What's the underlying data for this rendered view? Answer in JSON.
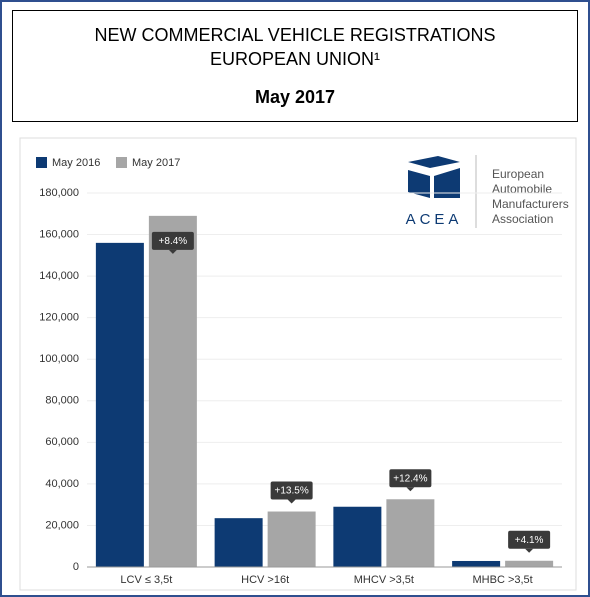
{
  "chart_data": {
    "type": "bar",
    "title": [
      "NEW COMMERCIAL VEHICLE REGISTRATIONS",
      "EUROPEAN UNION¹"
    ],
    "subtitle": "May 2017",
    "logo": {
      "abbr": "ACEA",
      "lines": [
        "European",
        "Automobile",
        "Manufacturers",
        "Association"
      ]
    },
    "categories": [
      "LCV ≤ 3,5t",
      "HCV >16t",
      "MHCV >3,5t",
      "MHBC >3,5t"
    ],
    "series": [
      {
        "name": "May 2016",
        "color": "#0d3a73",
        "values": [
          156000,
          23500,
          29000,
          2900
        ]
      },
      {
        "name": "May 2017",
        "color": "#a6a6a6",
        "values": [
          169000,
          26700,
          32600,
          3000
        ]
      }
    ],
    "annotations": [
      "+8.4%",
      "+13.5%",
      "+12.4%",
      "+4.1%"
    ],
    "ylim": [
      0,
      180000
    ],
    "yticks": [
      {
        "value": 0,
        "label": "0"
      },
      {
        "value": 20000,
        "label": "20,000"
      },
      {
        "value": 40000,
        "label": "40,000"
      },
      {
        "value": 60000,
        "label": "60,000"
      },
      {
        "value": 80000,
        "label": "80,000"
      },
      {
        "value": 100000,
        "label": "100,000"
      },
      {
        "value": 120000,
        "label": "120,000"
      },
      {
        "value": 140000,
        "label": "140,000"
      },
      {
        "value": 160000,
        "label": "160,000"
      },
      {
        "value": 180000,
        "label": "180,000"
      }
    ],
    "grid": true,
    "legend": "top-left"
  }
}
